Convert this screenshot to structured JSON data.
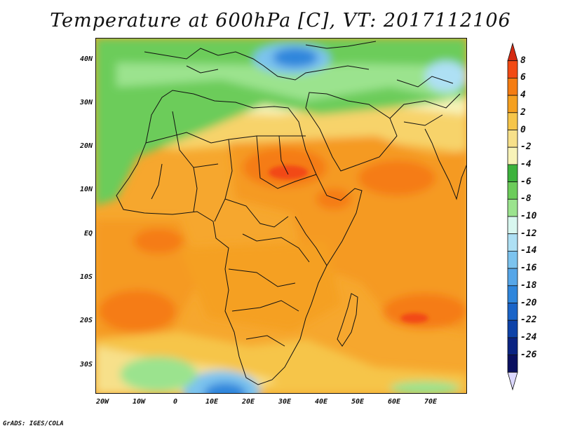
{
  "title": "Temperature at 600hPa [C], VT: 2017112106",
  "credit": "GrADS: IGES/COLA",
  "map": {
    "lat_labels": [
      "40N",
      "30N",
      "20N",
      "10N",
      "EQ",
      "10S",
      "20S",
      "30S"
    ],
    "lon_labels": [
      "20W",
      "10W",
      "0",
      "10E",
      "20E",
      "30E",
      "40E",
      "50E",
      "60E",
      "70E"
    ],
    "lat_range": [
      -37,
      45
    ],
    "lon_range": [
      -22,
      80
    ]
  },
  "colorbar": {
    "labels": [
      "8",
      "6",
      "4",
      "2",
      "0",
      "-2",
      "-4",
      "-6",
      "-8",
      "-10",
      "-12",
      "-14",
      "-16",
      "-18",
      "-20",
      "-22",
      "-24",
      "-26"
    ],
    "colors": [
      "#d42a12",
      "#f24a14",
      "#f57c12",
      "#f5a020",
      "#f6c54a",
      "#f7e08a",
      "#f8f3b8",
      "#3cb23c",
      "#6ccc5a",
      "#9be38e",
      "#d8f7ef",
      "#aee0f4",
      "#7cc3ee",
      "#56a6e8",
      "#2f86dc",
      "#1a64c8",
      "#0d42a8",
      "#0a2382",
      "#0a1060",
      "#dcd8ff"
    ]
  }
}
